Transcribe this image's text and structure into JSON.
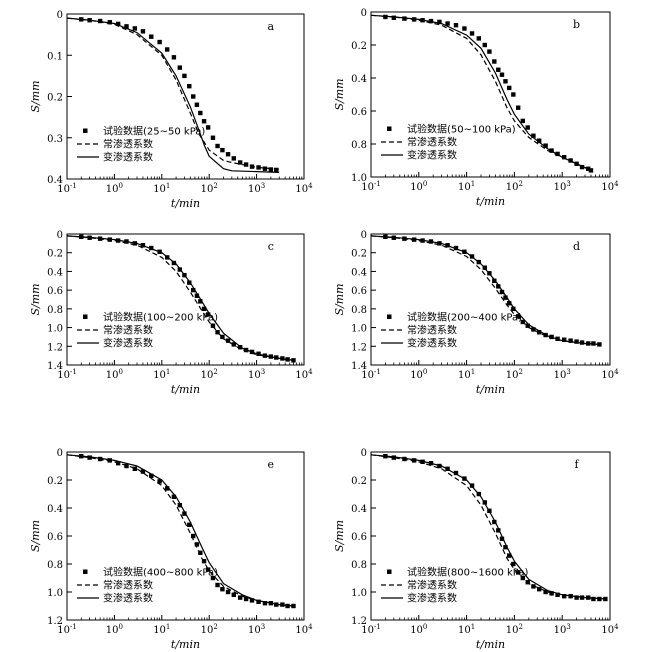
{
  "chart_data": [
    {
      "panel": "a",
      "type": "scatter",
      "xlabel": "t/min",
      "ylabel": "S/mm",
      "x_scale": "log",
      "xlim": [
        0.1,
        10000
      ],
      "x_ticks": [
        0.1,
        1,
        10,
        100,
        1000,
        10000
      ],
      "ylim": [
        0.4,
        0
      ],
      "y_ticks": [
        0,
        0.1,
        0.2,
        0.3,
        0.4
      ],
      "y_tick_labels": [
        "0",
        "0.1",
        "0.2",
        "0.3",
        "0.4"
      ],
      "legend_position": "bottom-left",
      "series": [
        {
          "name": "试验数据(25~50 kPa)",
          "style": "markers",
          "x": [
            0.2,
            0.3,
            0.5,
            0.8,
            1.2,
            1.8,
            2.7,
            4,
            6,
            9,
            13,
            18,
            24,
            30,
            38,
            46,
            55,
            65,
            78,
            95,
            120,
            150,
            190,
            250,
            330,
            450,
            600,
            800,
            1100,
            1500,
            2000,
            2600
          ],
          "y": [
            0.013,
            0.015,
            0.017,
            0.02,
            0.024,
            0.03,
            0.035,
            0.042,
            0.055,
            0.068,
            0.086,
            0.105,
            0.13,
            0.15,
            0.175,
            0.2,
            0.22,
            0.24,
            0.26,
            0.275,
            0.3,
            0.32,
            0.33,
            0.34,
            0.35,
            0.36,
            0.365,
            0.37,
            0.372,
            0.375,
            0.377,
            0.378
          ]
        },
        {
          "name": "常渗透系数",
          "style": "dashed",
          "x": [
            0.1,
            0.3,
            1,
            3,
            10,
            20,
            40,
            60,
            100,
            200,
            300,
            1000,
            3000
          ],
          "y": [
            0.01,
            0.015,
            0.025,
            0.05,
            0.1,
            0.16,
            0.24,
            0.29,
            0.33,
            0.355,
            0.36,
            0.372,
            0.376
          ]
        },
        {
          "name": "变渗透系数",
          "style": "solid",
          "x": [
            0.1,
            0.3,
            1,
            3,
            10,
            20,
            40,
            60,
            80,
            100,
            200,
            300,
            1000,
            3000
          ],
          "y": [
            0.01,
            0.015,
            0.023,
            0.045,
            0.095,
            0.15,
            0.225,
            0.28,
            0.32,
            0.345,
            0.375,
            0.38,
            0.382,
            0.384
          ]
        }
      ]
    },
    {
      "panel": "b",
      "type": "scatter",
      "xlabel": "t/min",
      "ylabel": "S/mm",
      "x_scale": "log",
      "xlim": [
        0.1,
        10000
      ],
      "x_ticks": [
        0.1,
        1,
        10,
        100,
        1000,
        10000
      ],
      "ylim": [
        1.0,
        0
      ],
      "y_ticks": [
        0,
        0.2,
        0.4,
        0.6,
        0.8,
        1.0
      ],
      "y_tick_labels": [
        "0",
        "0.2",
        "0.4",
        "0.6",
        "0.8",
        "1.0"
      ],
      "legend_position": "bottom-left",
      "series": [
        {
          "name": "试验数据(50~100 kPa)",
          "style": "markers",
          "x": [
            0.2,
            0.3,
            0.5,
            0.8,
            1.2,
            1.8,
            2.7,
            4,
            6,
            9,
            13,
            18,
            24,
            30,
            38,
            46,
            55,
            65,
            78,
            95,
            120,
            150,
            190,
            250,
            330,
            450,
            600,
            800,
            1100,
            1500,
            2000,
            2600,
            3500,
            4000
          ],
          "y": [
            0.03,
            0.035,
            0.04,
            0.045,
            0.05,
            0.055,
            0.06,
            0.07,
            0.08,
            0.1,
            0.13,
            0.16,
            0.2,
            0.24,
            0.3,
            0.35,
            0.38,
            0.42,
            0.46,
            0.5,
            0.58,
            0.66,
            0.7,
            0.75,
            0.78,
            0.81,
            0.84,
            0.86,
            0.88,
            0.9,
            0.92,
            0.94,
            0.95,
            0.96
          ]
        },
        {
          "name": "常渗透系数",
          "style": "dashed",
          "x": [
            0.1,
            0.3,
            1,
            3,
            10,
            20,
            40,
            70,
            100,
            200,
            500,
            1000,
            2000,
            4000
          ],
          "y": [
            0.02,
            0.03,
            0.05,
            0.08,
            0.16,
            0.26,
            0.42,
            0.58,
            0.66,
            0.76,
            0.84,
            0.88,
            0.92,
            0.96
          ]
        },
        {
          "name": "变渗透系数",
          "style": "solid",
          "x": [
            0.1,
            0.3,
            1,
            3,
            10,
            20,
            40,
            70,
            100,
            200,
            500,
            1000,
            2000,
            4000
          ],
          "y": [
            0.02,
            0.03,
            0.045,
            0.07,
            0.14,
            0.22,
            0.37,
            0.53,
            0.62,
            0.74,
            0.83,
            0.88,
            0.92,
            0.96
          ]
        }
      ]
    },
    {
      "panel": "c",
      "type": "scatter",
      "xlabel": "t/min",
      "ylabel": "S/mm",
      "x_scale": "log",
      "xlim": [
        0.1,
        10000
      ],
      "x_ticks": [
        0.1,
        1,
        10,
        100,
        1000,
        10000
      ],
      "ylim": [
        1.4,
        0
      ],
      "y_ticks": [
        0,
        0.2,
        0.4,
        0.6,
        0.8,
        1.0,
        1.2,
        1.4
      ],
      "y_tick_labels": [
        "0",
        "0.2",
        "0.4",
        "0.6",
        "0.8",
        "1.0",
        "1.2",
        "1.4"
      ],
      "legend_position": "bottom-left",
      "series": [
        {
          "name": "试验数据(100~200 kPa)",
          "style": "markers",
          "x": [
            0.2,
            0.3,
            0.5,
            0.8,
            1.2,
            1.8,
            2.7,
            4,
            6,
            9,
            13,
            18,
            24,
            30,
            38,
            46,
            55,
            65,
            78,
            95,
            120,
            150,
            190,
            250,
            330,
            450,
            600,
            800,
            1100,
            1500,
            2000,
            2600,
            3500,
            4500,
            6000
          ],
          "y": [
            0.03,
            0.04,
            0.05,
            0.06,
            0.07,
            0.08,
            0.1,
            0.12,
            0.15,
            0.19,
            0.25,
            0.31,
            0.38,
            0.44,
            0.52,
            0.6,
            0.66,
            0.72,
            0.8,
            0.86,
            0.98,
            1.05,
            1.1,
            1.14,
            1.18,
            1.21,
            1.24,
            1.26,
            1.28,
            1.3,
            1.31,
            1.32,
            1.33,
            1.34,
            1.35
          ]
        },
        {
          "name": "常渗透系数",
          "style": "dashed",
          "x": [
            0.1,
            0.3,
            1,
            3,
            10,
            20,
            40,
            70,
            100,
            200,
            500,
            1000,
            3000,
            6000
          ],
          "y": [
            0.02,
            0.04,
            0.07,
            0.12,
            0.25,
            0.4,
            0.62,
            0.82,
            0.94,
            1.12,
            1.24,
            1.29,
            1.33,
            1.35
          ]
        },
        {
          "name": "变渗透系数",
          "style": "solid",
          "x": [
            0.1,
            0.3,
            1,
            3,
            10,
            20,
            40,
            70,
            100,
            200,
            500,
            1000,
            3000,
            6000
          ],
          "y": [
            0.02,
            0.035,
            0.06,
            0.1,
            0.2,
            0.32,
            0.52,
            0.72,
            0.85,
            1.06,
            1.22,
            1.28,
            1.33,
            1.35
          ]
        }
      ]
    },
    {
      "panel": "d",
      "type": "scatter",
      "xlabel": "t/min",
      "ylabel": "S/mm",
      "x_scale": "log",
      "xlim": [
        0.1,
        10000
      ],
      "x_ticks": [
        0.1,
        1,
        10,
        100,
        1000,
        10000
      ],
      "ylim": [
        1.4,
        0
      ],
      "y_ticks": [
        0,
        0.2,
        0.4,
        0.6,
        0.8,
        1.0,
        1.2,
        1.4
      ],
      "y_tick_labels": [
        "0",
        "0.2",
        "0.4",
        "0.6",
        "0.8",
        "1.0",
        "1.2",
        "1.4"
      ],
      "legend_position": "bottom-left",
      "series": [
        {
          "name": "试验数据(200~400 kPa)",
          "style": "markers",
          "x": [
            0.2,
            0.3,
            0.5,
            0.8,
            1.2,
            1.8,
            2.7,
            4,
            6,
            9,
            13,
            18,
            24,
            30,
            38,
            46,
            55,
            65,
            78,
            95,
            120,
            150,
            190,
            250,
            330,
            450,
            600,
            800,
            1100,
            1500,
            2000,
            2600,
            3500,
            4500,
            6000
          ],
          "y": [
            0.03,
            0.04,
            0.05,
            0.06,
            0.07,
            0.08,
            0.1,
            0.12,
            0.15,
            0.19,
            0.24,
            0.3,
            0.36,
            0.42,
            0.5,
            0.56,
            0.62,
            0.68,
            0.74,
            0.8,
            0.88,
            0.94,
            0.98,
            1.02,
            1.05,
            1.08,
            1.1,
            1.12,
            1.13,
            1.14,
            1.15,
            1.16,
            1.17,
            1.17,
            1.18
          ]
        },
        {
          "name": "常渗透系数",
          "style": "dashed",
          "x": [
            0.1,
            0.3,
            1,
            3,
            10,
            20,
            40,
            70,
            100,
            200,
            500,
            1000,
            3000,
            6000
          ],
          "y": [
            0.02,
            0.04,
            0.07,
            0.12,
            0.24,
            0.38,
            0.58,
            0.76,
            0.86,
            1.0,
            1.1,
            1.14,
            1.17,
            1.18
          ]
        },
        {
          "name": "变渗透系数",
          "style": "solid",
          "x": [
            0.1,
            0.3,
            1,
            3,
            10,
            20,
            40,
            70,
            100,
            200,
            500,
            1000,
            3000,
            6000
          ],
          "y": [
            0.02,
            0.035,
            0.06,
            0.1,
            0.2,
            0.32,
            0.5,
            0.68,
            0.8,
            0.97,
            1.09,
            1.14,
            1.17,
            1.18
          ]
        }
      ]
    },
    {
      "panel": "e",
      "type": "scatter",
      "xlabel": "t/min",
      "ylabel": "S/mm",
      "x_scale": "log",
      "xlim": [
        0.1,
        10000
      ],
      "x_ticks": [
        0.1,
        1,
        10,
        100,
        1000,
        10000
      ],
      "ylim": [
        1.2,
        0
      ],
      "y_ticks": [
        0,
        0.2,
        0.4,
        0.6,
        0.8,
        1.0,
        1.2
      ],
      "y_tick_labels": [
        "0",
        "0.2",
        "0.4",
        "0.6",
        "0.8",
        "1.0",
        "1.2"
      ],
      "legend_position": "bottom-left",
      "series": [
        {
          "name": "试验数据(400~800 kPa)",
          "style": "markers",
          "x": [
            0.2,
            0.3,
            0.5,
            0.8,
            1.2,
            1.8,
            2.7,
            4,
            6,
            9,
            13,
            18,
            24,
            30,
            38,
            46,
            55,
            65,
            78,
            95,
            120,
            150,
            190,
            250,
            330,
            450,
            600,
            800,
            1100,
            1500,
            2000,
            2600,
            3500,
            4500,
            6000
          ],
          "y": [
            0.03,
            0.04,
            0.05,
            0.06,
            0.08,
            0.1,
            0.12,
            0.14,
            0.17,
            0.21,
            0.26,
            0.32,
            0.38,
            0.44,
            0.52,
            0.6,
            0.66,
            0.72,
            0.78,
            0.84,
            0.9,
            0.95,
            0.98,
            1.0,
            1.02,
            1.04,
            1.05,
            1.06,
            1.07,
            1.08,
            1.08,
            1.09,
            1.09,
            1.1,
            1.1
          ]
        },
        {
          "name": "常渗透系数",
          "style": "dashed",
          "x": [
            0.1,
            0.3,
            1,
            3,
            10,
            20,
            40,
            70,
            100,
            200,
            500,
            1000,
            3000,
            6000
          ],
          "y": [
            0.02,
            0.04,
            0.07,
            0.12,
            0.24,
            0.38,
            0.58,
            0.76,
            0.85,
            0.96,
            1.03,
            1.06,
            1.09,
            1.1
          ]
        },
        {
          "name": "变渗透系数",
          "style": "solid",
          "x": [
            0.1,
            0.3,
            1,
            3,
            10,
            20,
            40,
            70,
            100,
            200,
            500,
            1000,
            3000,
            6000
          ],
          "y": [
            0.02,
            0.035,
            0.06,
            0.1,
            0.2,
            0.32,
            0.5,
            0.68,
            0.79,
            0.94,
            1.02,
            1.06,
            1.09,
            1.1
          ]
        }
      ]
    },
    {
      "panel": "f",
      "type": "scatter",
      "xlabel": "t/min",
      "ylabel": "S/mm",
      "x_scale": "log",
      "xlim": [
        0.1,
        10000
      ],
      "x_ticks": [
        0.1,
        1,
        10,
        100,
        1000,
        10000
      ],
      "ylim": [
        1.2,
        0
      ],
      "y_ticks": [
        0,
        0.2,
        0.4,
        0.6,
        0.8,
        1.0,
        1.2
      ],
      "y_tick_labels": [
        "0",
        "0.2",
        "0.4",
        "0.6",
        "0.8",
        "1.0",
        "1.2"
      ],
      "legend_position": "bottom-left",
      "series": [
        {
          "name": "试验数据(800~1600 kPa)",
          "style": "markers",
          "x": [
            0.2,
            0.3,
            0.5,
            0.8,
            1.2,
            1.8,
            2.7,
            4,
            6,
            9,
            13,
            18,
            24,
            30,
            38,
            46,
            55,
            65,
            78,
            95,
            120,
            150,
            190,
            250,
            330,
            450,
            600,
            800,
            1100,
            1500,
            2000,
            2600,
            3500,
            4500,
            6000,
            8000
          ],
          "y": [
            0.03,
            0.04,
            0.05,
            0.06,
            0.07,
            0.08,
            0.1,
            0.12,
            0.15,
            0.19,
            0.24,
            0.3,
            0.36,
            0.42,
            0.5,
            0.56,
            0.62,
            0.68,
            0.74,
            0.8,
            0.86,
            0.9,
            0.93,
            0.96,
            0.98,
            1.0,
            1.01,
            1.02,
            1.03,
            1.03,
            1.04,
            1.04,
            1.04,
            1.05,
            1.05,
            1.05
          ]
        },
        {
          "name": "常渗透系数",
          "style": "dashed",
          "x": [
            0.1,
            0.3,
            1,
            3,
            10,
            20,
            40,
            70,
            100,
            200,
            500,
            1000,
            3000,
            8000
          ],
          "y": [
            0.02,
            0.04,
            0.07,
            0.12,
            0.24,
            0.38,
            0.58,
            0.76,
            0.84,
            0.94,
            1.0,
            1.02,
            1.04,
            1.05
          ]
        },
        {
          "name": "变渗透系数",
          "style": "solid",
          "x": [
            0.1,
            0.3,
            1,
            3,
            10,
            20,
            40,
            70,
            100,
            200,
            500,
            1000,
            3000,
            8000
          ],
          "y": [
            0.02,
            0.035,
            0.06,
            0.1,
            0.2,
            0.32,
            0.5,
            0.68,
            0.78,
            0.91,
            0.99,
            1.02,
            1.04,
            1.05
          ]
        }
      ]
    }
  ]
}
